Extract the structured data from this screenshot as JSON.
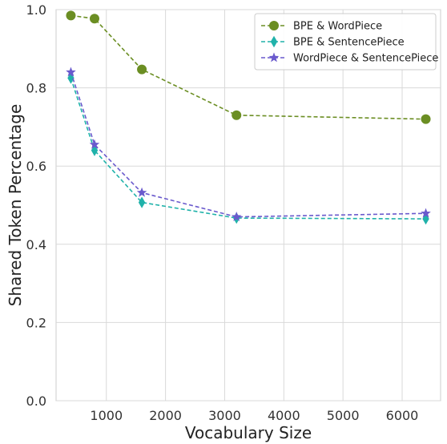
{
  "chart_data": {
    "type": "line",
    "xlabel": "Vocabulary Size",
    "ylabel": "Shared Token Percentage",
    "xlim": [
      150,
      6650
    ],
    "ylim": [
      0,
      1.0
    ],
    "xticks": [
      1000,
      2000,
      3000,
      4000,
      5000,
      6000
    ],
    "yticks": [
      0.0,
      0.2,
      0.4,
      0.6,
      0.8,
      1.0
    ],
    "xtick_labels": [
      "1000",
      "2000",
      "3000",
      "4000",
      "5000",
      "6000"
    ],
    "ytick_labels": [
      "0.0",
      "0.2",
      "0.4",
      "0.6",
      "0.8",
      "1.0"
    ],
    "grid": true,
    "legend_position": "top-right",
    "x": [
      400,
      800,
      1600,
      3200,
      6400
    ],
    "series": [
      {
        "name": "BPE & WordPiece",
        "values": [
          0.985,
          0.977,
          0.847,
          0.73,
          0.72
        ],
        "color": "#6b8e23",
        "marker": "circle"
      },
      {
        "name": "BPE & SentencePiece",
        "values": [
          0.825,
          0.64,
          0.507,
          0.467,
          0.465
        ],
        "color": "#20b2aa",
        "marker": "diamond"
      },
      {
        "name": "WordPiece & SentencePiece",
        "values": [
          0.84,
          0.655,
          0.532,
          0.47,
          0.479
        ],
        "color": "#6a5acd",
        "marker": "star"
      }
    ]
  }
}
